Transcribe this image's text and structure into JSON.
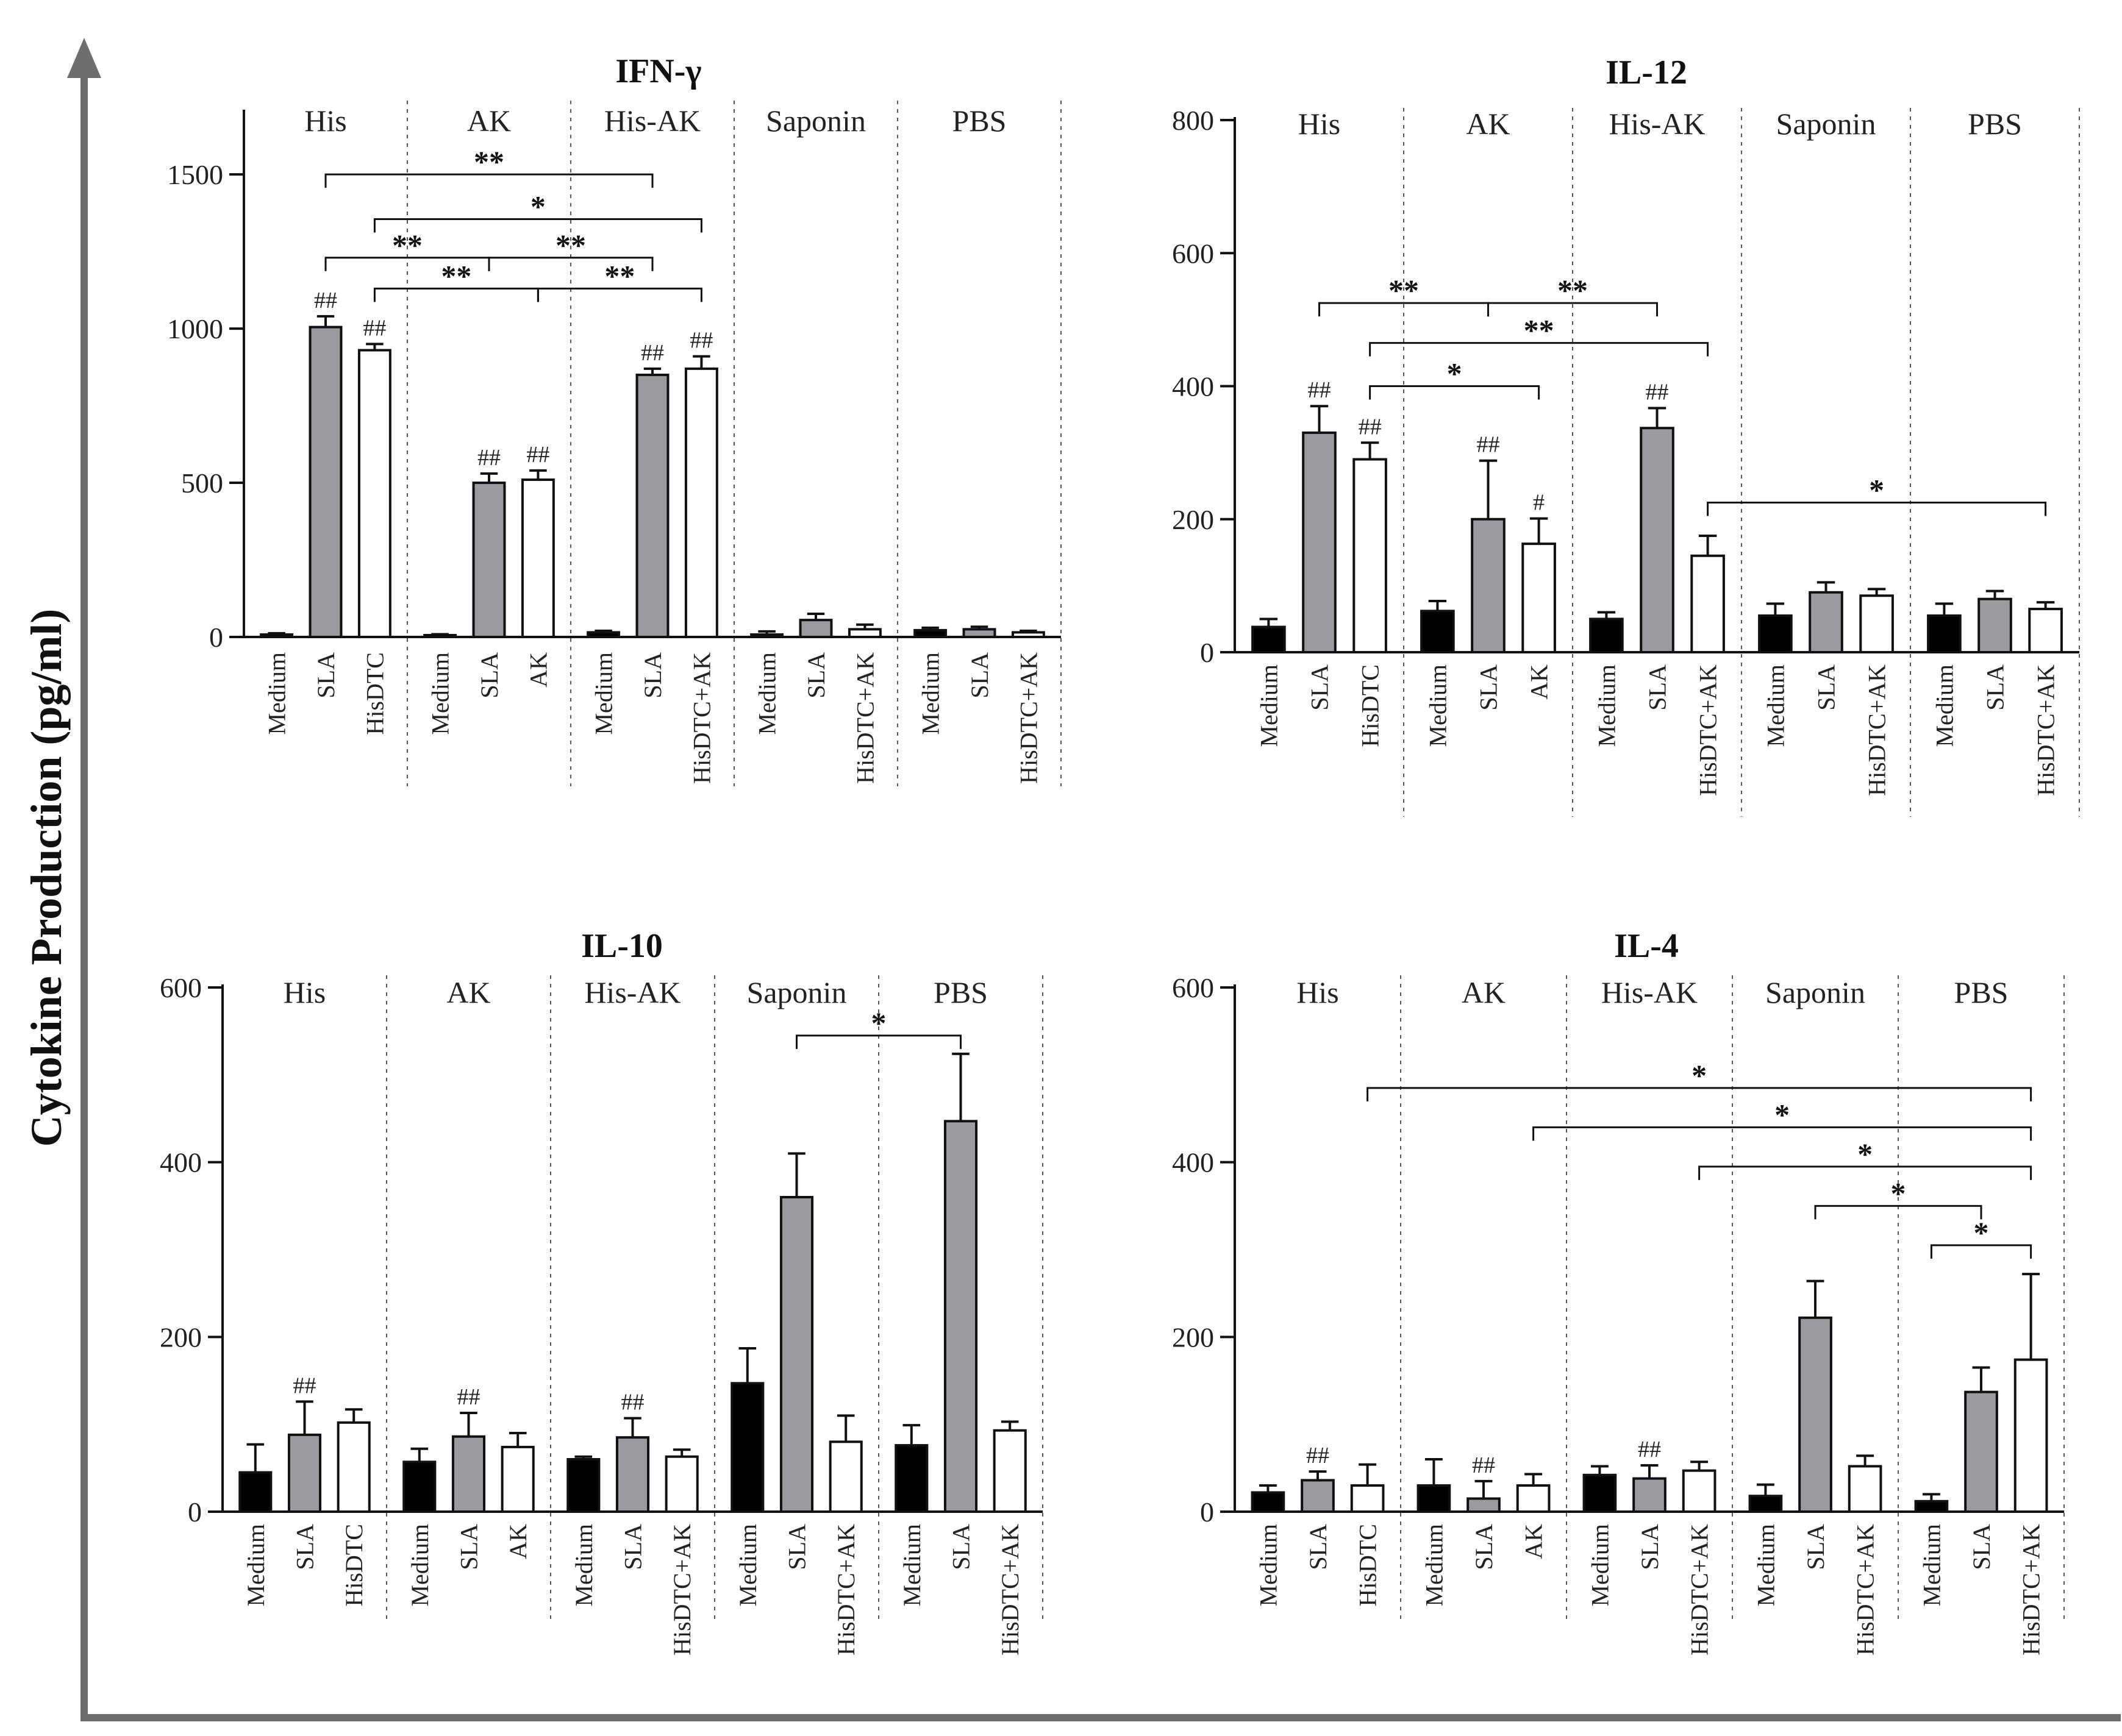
{
  "figure": {
    "y_axis_label": "Cytokine Production (pg/ml)",
    "colors": {
      "medium": "#000000",
      "sla": "#9a9aa0",
      "third": "#ffffff",
      "stroke": "#111111",
      "arrow": "#6e6e6e"
    },
    "icons": {
      "y_arrow": "arrow-up-icon"
    }
  },
  "chart_data": [
    {
      "type": "bar",
      "title": "IFN-γ",
      "ylim": [
        0,
        1700
      ],
      "yticks": [
        0,
        500,
        1000,
        1500
      ],
      "groups": [
        {
          "name": "His",
          "bars": [
            {
              "label": "Medium",
              "value": 8,
              "err": 4,
              "kind": "medium"
            },
            {
              "label": "SLA",
              "value": 1005,
              "err": 35,
              "kind": "sla",
              "mark": "##"
            },
            {
              "label": "HisDTC",
              "value": 930,
              "err": 20,
              "kind": "third",
              "mark": "##"
            }
          ]
        },
        {
          "name": "AK",
          "bars": [
            {
              "label": "Medium",
              "value": 6,
              "err": 3,
              "kind": "medium"
            },
            {
              "label": "SLA",
              "value": 500,
              "err": 30,
              "kind": "sla",
              "mark": "##"
            },
            {
              "label": "AK",
              "value": 510,
              "err": 30,
              "kind": "third",
              "mark": "##"
            }
          ]
        },
        {
          "name": "His-AK",
          "bars": [
            {
              "label": "Medium",
              "value": 15,
              "err": 5,
              "kind": "medium"
            },
            {
              "label": "SLA",
              "value": 850,
              "err": 20,
              "kind": "sla",
              "mark": "##"
            },
            {
              "label": "HisDTC+AK",
              "value": 870,
              "err": 40,
              "kind": "third",
              "mark": "##"
            }
          ]
        },
        {
          "name": "Saponin",
          "bars": [
            {
              "label": "Medium",
              "value": 8,
              "err": 10,
              "kind": "medium"
            },
            {
              "label": "SLA",
              "value": 55,
              "err": 20,
              "kind": "sla"
            },
            {
              "label": "HisDTC+AK",
              "value": 25,
              "err": 15,
              "kind": "third"
            }
          ]
        },
        {
          "name": "PBS",
          "bars": [
            {
              "label": "Medium",
              "value": 22,
              "err": 8,
              "kind": "medium"
            },
            {
              "label": "SLA",
              "value": 25,
              "err": 8,
              "kind": "sla"
            },
            {
              "label": "HisDTC+AK",
              "value": 15,
              "err": 5,
              "kind": "third"
            }
          ]
        }
      ],
      "brackets": [
        {
          "a": [
            0,
            1
          ],
          "b": [
            2,
            1
          ],
          "label": "**",
          "level": 1500
        },
        {
          "a": [
            0,
            2
          ],
          "b": [
            2,
            2
          ],
          "label": "*",
          "level": 1355
        },
        {
          "a": [
            0,
            1
          ],
          "b": [
            1,
            1
          ],
          "label": "**",
          "level": 1230
        },
        {
          "a": [
            1,
            1
          ],
          "b": [
            2,
            1
          ],
          "label": "**",
          "level": 1230
        },
        {
          "a": [
            0,
            2
          ],
          "b": [
            1,
            2
          ],
          "label": "**",
          "level": 1130
        },
        {
          "a": [
            1,
            2
          ],
          "b": [
            2,
            2
          ],
          "label": "**",
          "level": 1130
        }
      ]
    },
    {
      "type": "bar",
      "title": "IL-12",
      "ylim": [
        0,
        800
      ],
      "yticks": [
        0,
        200,
        400,
        600,
        800
      ],
      "groups": [
        {
          "name": "His",
          "bars": [
            {
              "label": "Medium",
              "value": 38,
              "err": 12,
              "kind": "medium"
            },
            {
              "label": "SLA",
              "value": 330,
              "err": 40,
              "kind": "sla",
              "mark": "##"
            },
            {
              "label": "HisDTC",
              "value": 290,
              "err": 25,
              "kind": "third",
              "mark": "##"
            }
          ]
        },
        {
          "name": "AK",
          "bars": [
            {
              "label": "Medium",
              "value": 62,
              "err": 15,
              "kind": "medium"
            },
            {
              "label": "SLA",
              "value": 200,
              "err": 88,
              "kind": "sla",
              "mark": "##"
            },
            {
              "label": "AK",
              "value": 163,
              "err": 38,
              "kind": "third",
              "mark": "#"
            }
          ]
        },
        {
          "name": "His-AK",
          "bars": [
            {
              "label": "Medium",
              "value": 50,
              "err": 10,
              "kind": "medium"
            },
            {
              "label": "SLA",
              "value": 337,
              "err": 30,
              "kind": "sla",
              "mark": "##"
            },
            {
              "label": "HisDTC+AK",
              "value": 145,
              "err": 30,
              "kind": "third"
            }
          ]
        },
        {
          "name": "Saponin",
          "bars": [
            {
              "label": "Medium",
              "value": 55,
              "err": 18,
              "kind": "medium"
            },
            {
              "label": "SLA",
              "value": 90,
              "err": 15,
              "kind": "sla"
            },
            {
              "label": "HisDTC+AK",
              "value": 85,
              "err": 10,
              "kind": "third"
            }
          ]
        },
        {
          "name": "PBS",
          "bars": [
            {
              "label": "Medium",
              "value": 55,
              "err": 18,
              "kind": "medium"
            },
            {
              "label": "SLA",
              "value": 80,
              "err": 12,
              "kind": "sla"
            },
            {
              "label": "HisDTC+AK",
              "value": 65,
              "err": 10,
              "kind": "third"
            }
          ]
        }
      ],
      "brackets": [
        {
          "a": [
            0,
            1
          ],
          "b": [
            1,
            1
          ],
          "label": "**",
          "level": 525
        },
        {
          "a": [
            1,
            1
          ],
          "b": [
            2,
            1
          ],
          "label": "**",
          "level": 525
        },
        {
          "a": [
            0,
            2
          ],
          "b": [
            2,
            2
          ],
          "label": "**",
          "level": 465
        },
        {
          "a": [
            0,
            2
          ],
          "b": [
            1,
            2
          ],
          "label": "*",
          "level": 400
        },
        {
          "a": [
            2,
            2
          ],
          "b": [
            4,
            2
          ],
          "label": "*",
          "level": 225
        }
      ]
    },
    {
      "type": "bar",
      "title": "IL-10",
      "ylim": [
        0,
        600
      ],
      "yticks": [
        0,
        200,
        400,
        600
      ],
      "groups": [
        {
          "name": "His",
          "bars": [
            {
              "label": "Medium",
              "value": 45,
              "err": 32,
              "kind": "medium"
            },
            {
              "label": "SLA",
              "value": 88,
              "err": 38,
              "kind": "sla",
              "mark": "##"
            },
            {
              "label": "HisDTC",
              "value": 102,
              "err": 15,
              "kind": "third"
            }
          ]
        },
        {
          "name": "AK",
          "bars": [
            {
              "label": "Medium",
              "value": 57,
              "err": 15,
              "kind": "medium"
            },
            {
              "label": "SLA",
              "value": 86,
              "err": 27,
              "kind": "sla",
              "mark": "##"
            },
            {
              "label": "AK",
              "value": 74,
              "err": 16,
              "kind": "third"
            }
          ]
        },
        {
          "name": "His-AK",
          "bars": [
            {
              "label": "Medium",
              "value": 60,
              "err": 3,
              "kind": "medium"
            },
            {
              "label": "SLA",
              "value": 85,
              "err": 22,
              "kind": "sla",
              "mark": "##"
            },
            {
              "label": "HisDTC+AK",
              "value": 63,
              "err": 8,
              "kind": "third"
            }
          ]
        },
        {
          "name": "Saponin",
          "bars": [
            {
              "label": "Medium",
              "value": 147,
              "err": 40,
              "kind": "medium"
            },
            {
              "label": "SLA",
              "value": 360,
              "err": 50,
              "kind": "sla"
            },
            {
              "label": "HisDTC+AK",
              "value": 80,
              "err": 30,
              "kind": "third"
            }
          ]
        },
        {
          "name": "PBS",
          "bars": [
            {
              "label": "Medium",
              "value": 76,
              "err": 23,
              "kind": "medium"
            },
            {
              "label": "SLA",
              "value": 447,
              "err": 77,
              "kind": "sla"
            },
            {
              "label": "HisDTC+AK",
              "value": 93,
              "err": 10,
              "kind": "third"
            }
          ]
        }
      ],
      "brackets": [
        {
          "a": [
            3,
            1
          ],
          "b": [
            4,
            1
          ],
          "label": "*",
          "level": 545
        }
      ]
    },
    {
      "type": "bar",
      "title": "IL-4",
      "ylim": [
        0,
        600
      ],
      "yticks": [
        0,
        200,
        400,
        600
      ],
      "groups": [
        {
          "name": "His",
          "bars": [
            {
              "label": "Medium",
              "value": 22,
              "err": 8,
              "kind": "medium"
            },
            {
              "label": "SLA",
              "value": 36,
              "err": 10,
              "kind": "sla",
              "mark": "##"
            },
            {
              "label": "HisDTC",
              "value": 30,
              "err": 24,
              "kind": "third"
            }
          ]
        },
        {
          "name": "AK",
          "bars": [
            {
              "label": "Medium",
              "value": 30,
              "err": 30,
              "kind": "medium"
            },
            {
              "label": "SLA",
              "value": 15,
              "err": 20,
              "kind": "sla",
              "mark": "##"
            },
            {
              "label": "AK",
              "value": 30,
              "err": 13,
              "kind": "third"
            }
          ]
        },
        {
          "name": "His-AK",
          "bars": [
            {
              "label": "Medium",
              "value": 42,
              "err": 10,
              "kind": "medium"
            },
            {
              "label": "SLA",
              "value": 38,
              "err": 15,
              "kind": "sla",
              "mark": "##"
            },
            {
              "label": "HisDTC+AK",
              "value": 47,
              "err": 10,
              "kind": "third"
            }
          ]
        },
        {
          "name": "Saponin",
          "bars": [
            {
              "label": "Medium",
              "value": 18,
              "err": 13,
              "kind": "medium"
            },
            {
              "label": "SLA",
              "value": 222,
              "err": 42,
              "kind": "sla"
            },
            {
              "label": "HisDTC+AK",
              "value": 52,
              "err": 12,
              "kind": "third"
            }
          ]
        },
        {
          "name": "PBS",
          "bars": [
            {
              "label": "Medium",
              "value": 12,
              "err": 8,
              "kind": "medium"
            },
            {
              "label": "SLA",
              "value": 137,
              "err": 28,
              "kind": "sla"
            },
            {
              "label": "HisDTC+AK",
              "value": 174,
              "err": 98,
              "kind": "third"
            }
          ]
        }
      ],
      "brackets": [
        {
          "a": [
            0,
            2
          ],
          "b": [
            4,
            2
          ],
          "label": "*",
          "level": 485
        },
        {
          "a": [
            1,
            2
          ],
          "b": [
            4,
            2
          ],
          "label": "*",
          "level": 440
        },
        {
          "a": [
            2,
            2
          ],
          "b": [
            4,
            2
          ],
          "label": "*",
          "level": 395
        },
        {
          "a": [
            3,
            1
          ],
          "b": [
            4,
            1
          ],
          "label": "*",
          "level": 350
        },
        {
          "a": [
            4,
            0
          ],
          "b": [
            4,
            2
          ],
          "label": "*",
          "level": 305
        }
      ]
    }
  ]
}
